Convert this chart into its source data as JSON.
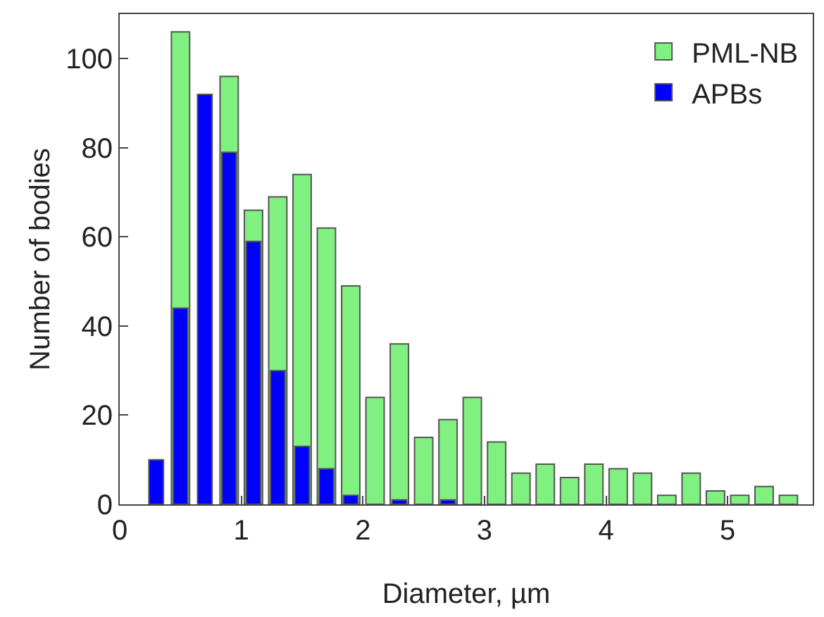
{
  "chart_data": {
    "type": "bar",
    "xlabel": "Diameter, µm",
    "ylabel": "Number of bodies",
    "x": [
      0.3,
      0.5,
      0.7,
      0.9,
      1.1,
      1.3,
      1.5,
      1.7,
      1.9,
      2.1,
      2.3,
      2.5,
      2.7,
      2.9,
      3.1,
      3.3,
      3.5,
      3.7,
      3.9,
      4.1,
      4.3,
      4.5,
      4.7,
      4.9,
      5.1,
      5.3,
      5.5
    ],
    "series": [
      {
        "name": "PML-NB",
        "color": "#80f080",
        "values": [
          null,
          106,
          null,
          96,
          66,
          69,
          74,
          62,
          49,
          24,
          36,
          15,
          19,
          24,
          14,
          7,
          9,
          6,
          9,
          8,
          7,
          2,
          7,
          3,
          2,
          4,
          2
        ]
      },
      {
        "name": "APBs",
        "color": "#0000ff",
        "values": [
          10,
          44,
          92,
          79,
          59,
          30,
          13,
          8,
          2,
          null,
          1,
          null,
          1,
          null,
          null,
          null,
          null,
          null,
          null,
          null,
          null,
          null,
          null,
          null,
          null,
          null,
          null
        ]
      }
    ],
    "xlim": [
      0,
      5.7
    ],
    "xticks": [
      0,
      1,
      2,
      3,
      4,
      5
    ],
    "ylim": [
      0,
      110
    ],
    "yticks": [
      0,
      20,
      40,
      60,
      80,
      100
    ],
    "grid": false,
    "legend": "top right"
  }
}
